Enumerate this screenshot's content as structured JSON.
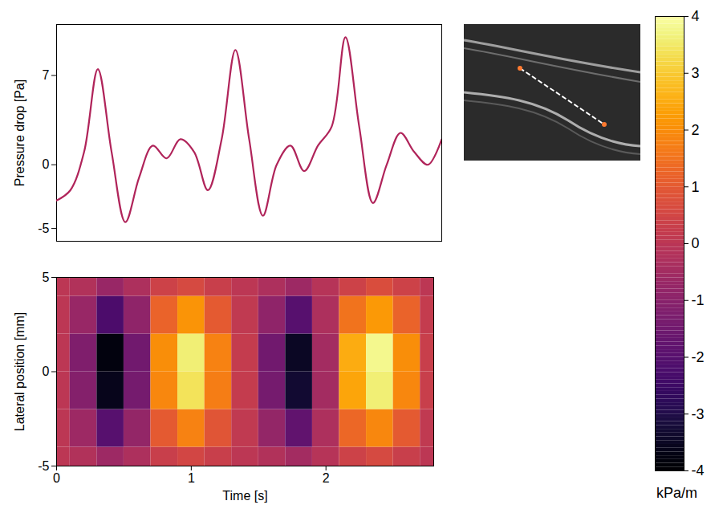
{
  "chart_data": [
    {
      "type": "line",
      "ylabel": "Pressure drop [Pa]",
      "xlim": [
        0,
        2.8
      ],
      "ylim": [
        -6,
        11
      ],
      "yticks": [
        -5,
        0,
        7
      ],
      "tick_labels": "y",
      "x": [
        0,
        0.1,
        0.2,
        0.3,
        0.4,
        0.5,
        0.6,
        0.7,
        0.8,
        0.9,
        1.0,
        1.1,
        1.2,
        1.3,
        1.4,
        1.5,
        1.6,
        1.7,
        1.8,
        1.9,
        2.0,
        2.1,
        2.2,
        2.3,
        2.4,
        2.5,
        2.6,
        2.7,
        2.8
      ],
      "series": [
        {
          "color": "#b0245a",
          "values": [
            -2.8,
            -2,
            1,
            7.5,
            1,
            -4.5,
            -1,
            1.5,
            0.5,
            2,
            1,
            -2,
            2,
            9,
            2,
            -4,
            0,
            1.5,
            -0.5,
            1.5,
            3,
            10,
            3,
            -3,
            0,
            2.5,
            1,
            0,
            2
          ]
        }
      ]
    },
    {
      "type": "heatmap",
      "xlabel": "Time [s]",
      "ylabel": "Lateral position [mm]",
      "xlim": [
        0,
        2.8
      ],
      "ylim": [
        -5,
        5
      ],
      "xticks": [
        0,
        1,
        2
      ],
      "yticks": [
        -5,
        0,
        5
      ],
      "x": [
        0,
        0.2,
        0.4,
        0.6,
        0.8,
        1.0,
        1.2,
        1.4,
        1.6,
        1.8,
        2.0,
        2.2,
        2.4,
        2.6,
        2.8
      ],
      "y": [
        -5,
        -3,
        -1,
        1,
        3,
        5
      ],
      "values": [
        [
          0,
          -0.2,
          -0.6,
          -0.3,
          0.3,
          0.5,
          0.3,
          0.0,
          -0.2,
          -0.5,
          -0.1,
          0.4,
          0.6,
          0.3,
          0.0
        ],
        [
          0,
          -0.6,
          -2.0,
          -0.8,
          1.0,
          1.8,
          0.9,
          0.1,
          -0.8,
          -1.8,
          -0.3,
          1.3,
          1.9,
          1.0,
          0.1
        ],
        [
          0,
          -1.1,
          -3.6,
          -1.4,
          1.9,
          3.4,
          1.7,
          0.2,
          -1.4,
          -3.3,
          -0.5,
          2.4,
          3.6,
          1.9,
          0.3
        ],
        [
          0,
          -1.2,
          -3.8,
          -1.5,
          2.0,
          3.6,
          1.8,
          0.2,
          -1.5,
          -3.5,
          -0.5,
          2.5,
          3.8,
          2.0,
          0.3
        ],
        [
          0,
          -0.7,
          -2.2,
          -0.9,
          1.2,
          2.1,
          1.0,
          0.1,
          -0.9,
          -2.0,
          -0.3,
          1.5,
          2.2,
          1.2,
          0.2
        ],
        [
          0,
          -0.2,
          -0.7,
          -0.3,
          0.4,
          0.6,
          0.3,
          0.0,
          -0.3,
          -0.6,
          -0.1,
          0.4,
          0.7,
          0.4,
          0.0
        ]
      ],
      "colorbar": {
        "range": [
          -4,
          4
        ],
        "ticks": [
          -4,
          -3,
          -2,
          -1,
          0,
          1,
          2,
          3,
          4
        ],
        "label": "kPa/m"
      }
    }
  ]
}
